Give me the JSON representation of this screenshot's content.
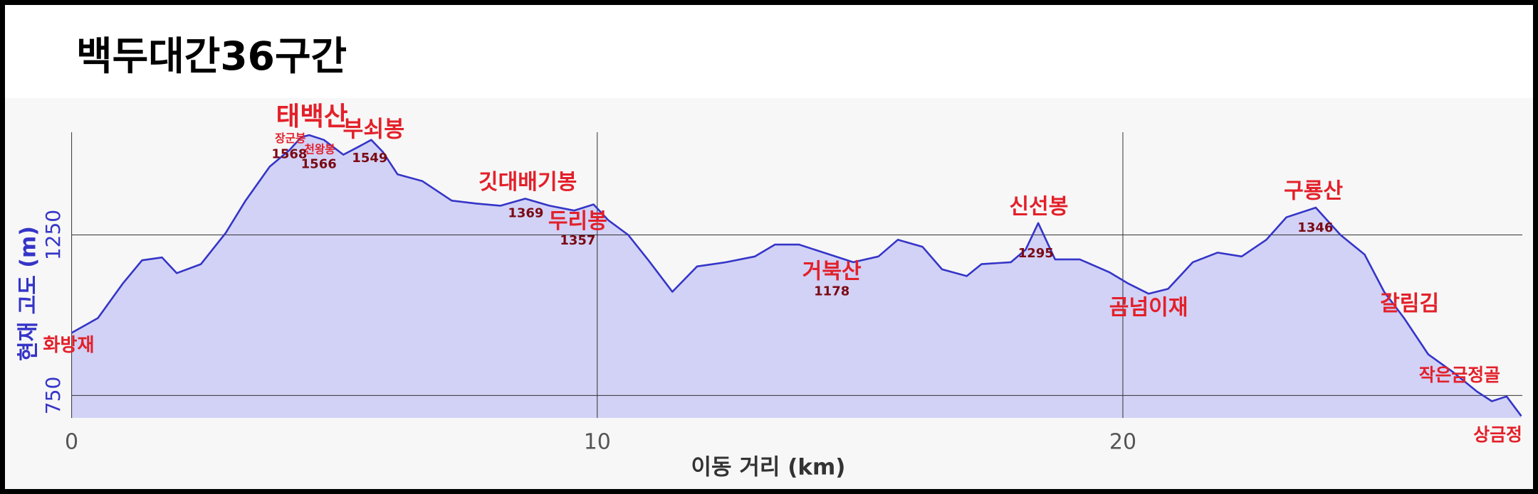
{
  "chart_data": {
    "type": "area",
    "title": "백두대간36구간",
    "x_label": "이동 거리 (km)",
    "y_label": "현재 고도 (m)",
    "x": [
      0,
      0.5,
      0.97,
      1.34,
      1.72,
      2.0,
      2.46,
      2.93,
      3.31,
      3.77,
      4.15,
      4.37,
      4.52,
      4.8,
      5.17,
      5.45,
      5.7,
      5.92,
      6.2,
      6.67,
      7.23,
      7.69,
      8.16,
      8.63,
      9.09,
      9.56,
      9.93,
      10.21,
      10.59,
      10.96,
      11.43,
      11.9,
      12.45,
      13.0,
      13.38,
      13.84,
      14.31,
      14.87,
      15.35,
      15.72,
      16.19,
      16.56,
      17.03,
      17.31,
      17.87,
      18.15,
      18.39,
      18.71,
      19.18,
      19.74,
      20.11,
      20.49,
      20.86,
      21.33,
      21.8,
      22.26,
      22.73,
      23.11,
      23.67,
      24.14,
      24.6,
      24.97,
      25.35,
      25.81,
      26.28,
      26.74,
      27.02,
      27.3,
      27.58
    ],
    "values": [
      945,
      991,
      1098,
      1171,
      1180,
      1131,
      1159,
      1256,
      1357,
      1463,
      1515,
      1555,
      1561,
      1546,
      1500,
      1524,
      1546,
      1509,
      1439,
      1418,
      1357,
      1348,
      1341,
      1363,
      1341,
      1326,
      1345,
      1296,
      1250,
      1174,
      1073,
      1152,
      1165,
      1183,
      1220,
      1220,
      1195,
      1165,
      1183,
      1235,
      1213,
      1143,
      1122,
      1159,
      1165,
      1204,
      1287,
      1174,
      1174,
      1134,
      1098,
      1067,
      1082,
      1165,
      1195,
      1183,
      1235,
      1305,
      1335,
      1250,
      1189,
      1073,
      991,
      878,
      823,
      762,
      732,
      747,
      686
    ],
    "color": "#3535c8",
    "fill": "#d2d2f6",
    "xlim": [
      0,
      27.6
    ],
    "ylim": [
      680,
      1570
    ],
    "xticks": [
      0,
      10,
      20
    ],
    "yticks": [
      750,
      1250
    ],
    "grid": true,
    "annotations": [
      {
        "text": "화방재"
      },
      {
        "text": "태백산"
      },
      {
        "text": "장군봉",
        "value": 1568
      },
      {
        "text": "천왕봉",
        "value": 1566
      },
      {
        "text": "부쇠봉",
        "value": 1549
      },
      {
        "text": "깃대배기봉",
        "value": 1369
      },
      {
        "text": "두리봉",
        "value": 1357
      },
      {
        "text": "거북산",
        "value": 1178
      },
      {
        "text": "신선봉",
        "value": 1295
      },
      {
        "text": "곰넘이재"
      },
      {
        "text": "구룡산",
        "value": 1346
      },
      {
        "text": "갈림김"
      },
      {
        "text": "작은금정골"
      },
      {
        "text": "상금정"
      }
    ]
  }
}
